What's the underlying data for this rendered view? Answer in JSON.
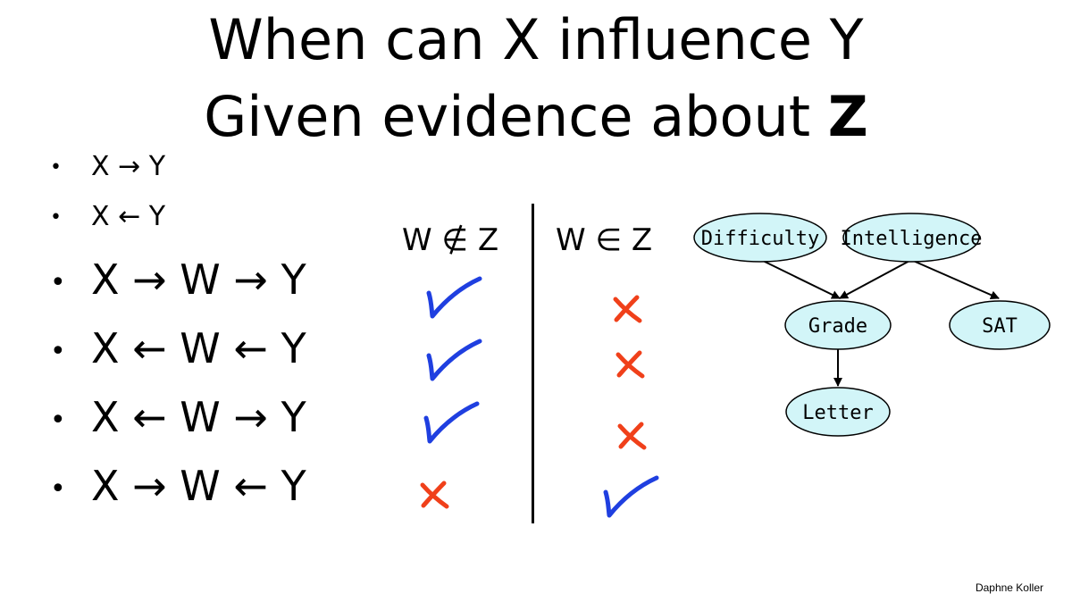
{
  "title": {
    "line1": "When can X influence Y",
    "line2_prefix": "Given evidence about ",
    "line2_bold": "Z"
  },
  "bullets": [
    {
      "text": "X → Y"
    },
    {
      "text": "X ← Y"
    },
    {
      "text": "X → W → Y"
    },
    {
      "text": "X ← W ← Y"
    },
    {
      "text": "X ← W → Y"
    },
    {
      "text": "X → W ← Y"
    }
  ],
  "bullet_symbol": "•",
  "columns": {
    "not_in": "W ∉ Z",
    "in": "W ∈ Z"
  },
  "marks": {
    "not_in": [
      "check",
      "check",
      "check",
      "cross"
    ],
    "in": [
      "cross",
      "cross",
      "cross",
      "check"
    ]
  },
  "colors": {
    "check": "#1f3fe0",
    "cross": "#f0401a",
    "node_fill": "#d2f5f8",
    "node_stroke": "#000000"
  },
  "graph": {
    "nodes": {
      "difficulty": "Difficulty",
      "intelligence": "Intelligence",
      "grade": "Grade",
      "sat": "SAT",
      "letter": "Letter"
    },
    "edges": [
      [
        "Difficulty",
        "Grade"
      ],
      [
        "Intelligence",
        "Grade"
      ],
      [
        "Intelligence",
        "SAT"
      ],
      [
        "Grade",
        "Letter"
      ]
    ]
  },
  "footer": "Daphne Koller"
}
